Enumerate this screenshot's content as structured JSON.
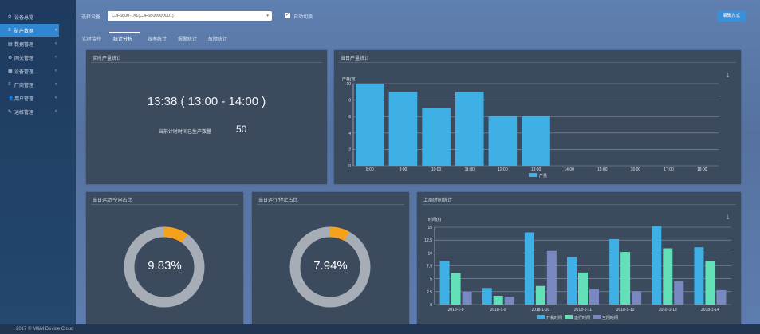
{
  "sidebar": {
    "items": [
      {
        "label": "设备总览",
        "icon": "map-pin-icon",
        "chev": false,
        "active": false
      },
      {
        "label": "矿产数据",
        "icon": "list-icon",
        "chev": true,
        "active": true
      },
      {
        "label": "数据管理",
        "icon": "table-icon",
        "chev": true,
        "active": false
      },
      {
        "label": "网关管理",
        "icon": "gear-icon",
        "chev": true,
        "active": false
      },
      {
        "label": "设备管理",
        "icon": "grid-icon",
        "chev": true,
        "active": false
      },
      {
        "label": "厂商管理",
        "icon": "list-icon",
        "chev": true,
        "active": false
      },
      {
        "label": "用户管理",
        "icon": "users-icon",
        "chev": true,
        "active": false
      },
      {
        "label": "运维管理",
        "icon": "wrench-icon",
        "chev": true,
        "active": false
      }
    ]
  },
  "topbar": {
    "device_label": "选择设备",
    "device_value": "CJF6800-1#1(CJF6800000001)",
    "auto_switch": "自动切换",
    "action_button": "编辑方式"
  },
  "tabs": [
    "实时监控",
    "统计分析",
    "效率统计",
    "报警统计",
    "故障统计"
  ],
  "footer": "2017 © M&M Device Cloud",
  "realtime": {
    "title": "实时产量统计",
    "time": "13:38 ( 13:00 - 14:00 )",
    "count_label": "当前计时时间已生产数量",
    "count_value": "50"
  },
  "month_output": {
    "title": "当日产量统计",
    "ylabel": "产量(包)",
    "legend": "产量",
    "download_icon": "download-icon",
    "color": "#3fb0e6"
  },
  "donut1": {
    "title": "当日运动/空闲占比",
    "value": "9.83%",
    "fraction": 0.0983
  },
  "donut2": {
    "title": "当日运行/停止占比",
    "value": "7.94%",
    "fraction": 0.0794
  },
  "hours": {
    "title": "上周时间统计",
    "ylabel": "时间(h)",
    "legend": [
      "开机时间",
      "运行时间",
      "空闲时间"
    ],
    "colors": [
      "#3fb0e6",
      "#63e0b8",
      "#7a88c2"
    ]
  },
  "chart_data": [
    {
      "type": "bar",
      "title": "当日产量统计",
      "ylabel": "产量(包)",
      "categories": [
        "8:00",
        "9:00",
        "10:00",
        "11:00",
        "12:00",
        "13:00",
        "14:00",
        "15:00",
        "16:00",
        "17:00",
        "18:00"
      ],
      "values": [
        10,
        9,
        7,
        9,
        6,
        6,
        0,
        0,
        0,
        0,
        0
      ],
      "ylim": [
        0,
        10
      ],
      "yticks": [
        0,
        2,
        4,
        6,
        8,
        10
      ],
      "legend": "bottom"
    },
    {
      "type": "bar",
      "title": "上周时间统计",
      "ylabel": "时间(h)",
      "categories": [
        "2018-1-8",
        "2018-1-9",
        "2018-1-10",
        "2018-1-11",
        "2018-1-12",
        "2018-1-13",
        "2018-1-14"
      ],
      "series": [
        {
          "name": "开机时间",
          "values": [
            8.5,
            3.2,
            14,
            9.2,
            12.7,
            15.2,
            11.1
          ]
        },
        {
          "name": "运行时间",
          "values": [
            6.1,
            1.7,
            3.6,
            6.2,
            10.2,
            10.9,
            8.5
          ]
        },
        {
          "name": "空闲时间",
          "values": [
            2.5,
            1.5,
            10.4,
            3.0,
            2.6,
            4.5,
            2.8
          ]
        }
      ],
      "ylim": [
        0,
        15
      ],
      "yticks": [
        0,
        2.5,
        5,
        7.5,
        10,
        12.5,
        15
      ],
      "legend": "bottom"
    }
  ]
}
